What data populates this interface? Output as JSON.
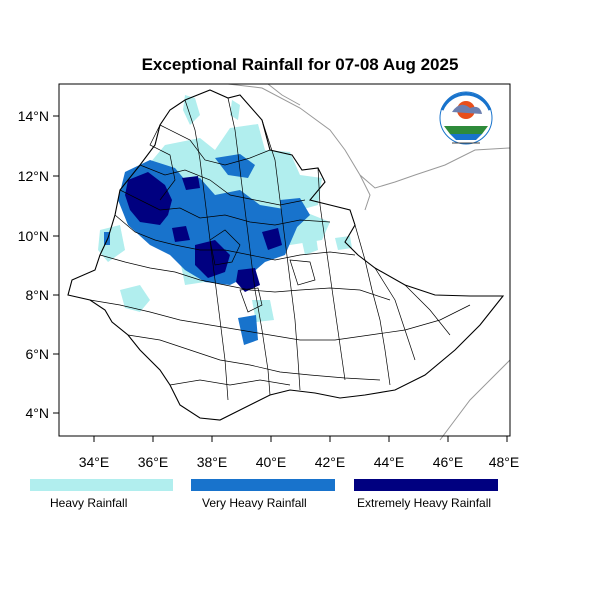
{
  "title": "Exceptional Rainfall for 07-08 Aug 2025",
  "axes": {
    "x_ticks": [
      "34°E",
      "36°E",
      "38°E",
      "40°E",
      "42°E",
      "44°E",
      "46°E",
      "48°E"
    ],
    "y_ticks": [
      "14°N",
      "12°N",
      "10°N",
      "8°N",
      "6°N",
      "4°N"
    ],
    "lon_range": [
      32.8,
      48.2
    ],
    "lat_range": [
      3.2,
      15.0
    ]
  },
  "legend": [
    {
      "label": "Heavy Rainfall",
      "color": "#b1eeee"
    },
    {
      "label": "Very Heavy Rainfall",
      "color": "#1873cc"
    },
    {
      "label": "Extremely Heavy Rainfall",
      "color": "#000080"
    }
  ],
  "logo": {
    "name": "ethiopian-meteorology-institute-logo",
    "text": "Ethiopian Meteorology Institute"
  }
}
